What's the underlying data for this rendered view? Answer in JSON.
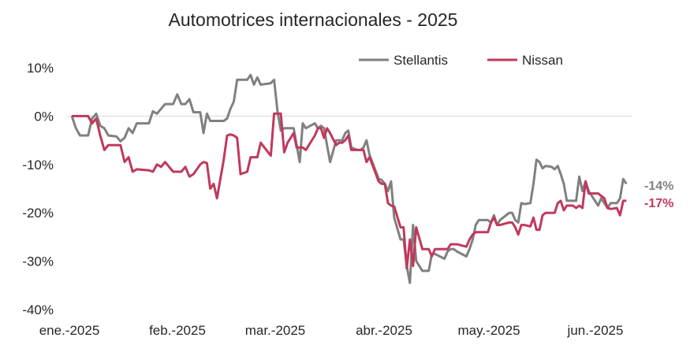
{
  "chart_data": {
    "type": "line",
    "title": "Automotrices internacionales - 2025",
    "xlabel": "",
    "ylabel": "",
    "xlim": [
      "2025-01-01",
      "2025-06-10"
    ],
    "ylim": [
      -40,
      10
    ],
    "x_ticks": [
      {
        "date": "2025-01-01",
        "label": "ene.-2025"
      },
      {
        "date": "2025-02-01",
        "label": "feb.-2025"
      },
      {
        "date": "2025-03-01",
        "label": "mar.-2025"
      },
      {
        "date": "2025-04-01",
        "label": "abr.-2025"
      },
      {
        "date": "2025-05-01",
        "label": "may.-2025"
      },
      {
        "date": "2025-06-01",
        "label": "jun.-2025"
      }
    ],
    "y_ticks": [
      {
        "value": 10,
        "label": "10%"
      },
      {
        "value": 0,
        "label": "0%"
      },
      {
        "value": -10,
        "label": "-10%"
      },
      {
        "value": -20,
        "label": "-20%"
      },
      {
        "value": -30,
        "label": "-30%"
      },
      {
        "value": -40,
        "label": "-40%"
      }
    ],
    "grid": false,
    "zero_line": true,
    "legend": "top-right",
    "series": [
      {
        "name": "Stellantis",
        "color": "#808080",
        "end_label": "-14%",
        "points": [
          [
            "2025-01-02",
            0
          ],
          [
            "2025-01-03",
            -2.5
          ],
          [
            "2025-01-04",
            -4
          ],
          [
            "2025-01-06",
            -4
          ],
          [
            "2025-01-07",
            -0.5
          ],
          [
            "2025-01-08",
            0.5
          ],
          [
            "2025-01-09",
            -2
          ],
          [
            "2025-01-10",
            -2.5
          ],
          [
            "2025-01-11",
            -4
          ],
          [
            "2025-01-13",
            -4.2
          ],
          [
            "2025-01-14",
            -5.2
          ],
          [
            "2025-01-15",
            -4.5
          ],
          [
            "2025-01-16",
            -2.5
          ],
          [
            "2025-01-17",
            -3.5
          ],
          [
            "2025-01-18",
            -1.5
          ],
          [
            "2025-01-21",
            -1.5
          ],
          [
            "2025-01-22",
            1
          ],
          [
            "2025-01-23",
            0.5
          ],
          [
            "2025-01-24",
            1.5
          ],
          [
            "2025-01-25",
            2.5
          ],
          [
            "2025-01-27",
            2.5
          ],
          [
            "2025-01-28",
            4.5
          ],
          [
            "2025-01-29",
            2.5
          ],
          [
            "2025-01-30",
            2.5
          ],
          [
            "2025-01-31",
            3.5
          ],
          [
            "2025-02-01",
            0.8
          ],
          [
            "2025-02-03",
            0.8
          ],
          [
            "2025-02-04",
            -3.5
          ],
          [
            "2025-02-05",
            0.5
          ],
          [
            "2025-02-06",
            -1
          ],
          [
            "2025-02-07",
            -1
          ],
          [
            "2025-02-10",
            -1
          ],
          [
            "2025-02-11",
            -0.5
          ],
          [
            "2025-02-12",
            1.5
          ],
          [
            "2025-02-13",
            3
          ],
          [
            "2025-02-14",
            7.5
          ],
          [
            "2025-02-17",
            7.5
          ],
          [
            "2025-02-18",
            8.5
          ],
          [
            "2025-02-19",
            6.5
          ],
          [
            "2025-02-20",
            8
          ],
          [
            "2025-02-21",
            6.5
          ],
          [
            "2025-02-24",
            6.8
          ],
          [
            "2025-02-25",
            7.5
          ],
          [
            "2025-02-26",
            1
          ],
          [
            "2025-02-27",
            -3
          ],
          [
            "2025-02-28",
            -2.5
          ],
          [
            "2025-03-03",
            -2.5
          ],
          [
            "2025-03-04",
            -6
          ],
          [
            "2025-03-05",
            -9.5
          ],
          [
            "2025-03-06",
            -1.5
          ],
          [
            "2025-03-07",
            -2.5
          ],
          [
            "2025-03-10",
            -1.5
          ],
          [
            "2025-03-11",
            -2.5
          ],
          [
            "2025-03-12",
            -2
          ],
          [
            "2025-03-13",
            -2.5
          ],
          [
            "2025-03-14",
            -6
          ],
          [
            "2025-03-15",
            -9.5
          ],
          [
            "2025-03-17",
            -5
          ],
          [
            "2025-03-18",
            -5
          ],
          [
            "2025-03-19",
            -5
          ],
          [
            "2025-03-20",
            -3.5
          ],
          [
            "2025-03-21",
            -3
          ],
          [
            "2025-03-22",
            -6.5
          ],
          [
            "2025-03-24",
            -7
          ],
          [
            "2025-03-25",
            -7
          ],
          [
            "2025-03-26",
            -6.5
          ],
          [
            "2025-03-27",
            -5
          ],
          [
            "2025-03-28",
            -8
          ],
          [
            "2025-03-31",
            -13
          ],
          [
            "2025-04-01",
            -13.2
          ],
          [
            "2025-04-02",
            -14
          ],
          [
            "2025-04-03",
            -15.5
          ],
          [
            "2025-04-04",
            -13.5
          ],
          [
            "2025-04-05",
            -21
          ],
          [
            "2025-04-07",
            -25.5
          ],
          [
            "2025-04-08",
            -25.5
          ],
          [
            "2025-04-09",
            -31
          ],
          [
            "2025-04-10",
            -34.5
          ],
          [
            "2025-04-11",
            -22.5
          ],
          [
            "2025-04-12",
            -30
          ],
          [
            "2025-04-14",
            -32
          ],
          [
            "2025-04-15",
            -32
          ],
          [
            "2025-04-16",
            -32
          ],
          [
            "2025-04-17",
            -28.5
          ],
          [
            "2025-04-18",
            -28.5
          ],
          [
            "2025-04-21",
            -29.5
          ],
          [
            "2025-04-22",
            -28
          ],
          [
            "2025-04-23",
            -27.5
          ],
          [
            "2025-04-24",
            -27.5
          ],
          [
            "2025-04-25",
            -28
          ],
          [
            "2025-04-28",
            -29
          ],
          [
            "2025-04-29",
            -27.5
          ],
          [
            "2025-04-30",
            -25.5
          ],
          [
            "2025-05-01",
            -22.5
          ],
          [
            "2025-05-02",
            -21.5
          ],
          [
            "2025-05-05",
            -21.5
          ],
          [
            "2025-05-06",
            -22
          ],
          [
            "2025-05-07",
            -20.5
          ],
          [
            "2025-05-08",
            -22.5
          ],
          [
            "2025-05-09",
            -21.5
          ],
          [
            "2025-05-12",
            -20
          ],
          [
            "2025-05-13",
            -20
          ],
          [
            "2025-05-14",
            -21.5
          ],
          [
            "2025-05-15",
            -22
          ],
          [
            "2025-05-16",
            -18
          ],
          [
            "2025-05-17",
            -18.2
          ],
          [
            "2025-05-19",
            -18
          ],
          [
            "2025-05-20",
            -14
          ],
          [
            "2025-05-21",
            -9
          ],
          [
            "2025-05-22",
            -9.5
          ],
          [
            "2025-05-23",
            -10.8
          ],
          [
            "2025-05-24",
            -10.3
          ],
          [
            "2025-05-26",
            -10.5
          ],
          [
            "2025-05-27",
            -11
          ],
          [
            "2025-05-28",
            -10.3
          ],
          [
            "2025-05-29",
            -12
          ],
          [
            "2025-05-30",
            -14
          ],
          [
            "2025-05-31",
            -17.5
          ],
          [
            "2025-06-02",
            -17.5
          ],
          [
            "2025-06-03",
            -17.5
          ],
          [
            "2025-06-04",
            -12.5
          ],
          [
            "2025-06-05",
            -15.5
          ],
          [
            "2025-06-06",
            -13.5
          ],
          [
            "2025-06-07",
            -15.5
          ],
          [
            "2025-06-09",
            -17.5
          ],
          [
            "2025-06-10",
            -18.5
          ],
          [
            "2025-06-11",
            -17
          ],
          [
            "2025-06-12",
            -18
          ],
          [
            "2025-06-13",
            -19
          ],
          [
            "2025-06-14",
            -18
          ],
          [
            "2025-06-16",
            -18
          ],
          [
            "2025-06-17",
            -17
          ],
          [
            "2025-06-18",
            -13
          ],
          [
            "2025-06-19",
            -14
          ]
        ]
      },
      {
        "name": "Nissan",
        "color": "#c0395c",
        "end_label": "-17%",
        "points": [
          [
            "2025-01-02",
            0
          ],
          [
            "2025-01-06",
            0
          ],
          [
            "2025-01-07",
            -1.5
          ],
          [
            "2025-01-08",
            -0.5
          ],
          [
            "2025-01-09",
            -4
          ],
          [
            "2025-01-10",
            -7
          ],
          [
            "2025-01-11",
            -6
          ],
          [
            "2025-01-13",
            -6
          ],
          [
            "2025-01-14",
            -6
          ],
          [
            "2025-01-15",
            -9.5
          ],
          [
            "2025-01-16",
            -8.5
          ],
          [
            "2025-01-17",
            -11.5
          ],
          [
            "2025-01-18",
            -11
          ],
          [
            "2025-01-21",
            -11.2
          ],
          [
            "2025-01-22",
            -11.5
          ],
          [
            "2025-01-23",
            -10
          ],
          [
            "2025-01-24",
            -10.5
          ],
          [
            "2025-01-25",
            -9.5
          ],
          [
            "2025-01-27",
            -11.5
          ],
          [
            "2025-01-28",
            -11.5
          ],
          [
            "2025-01-29",
            -11.5
          ],
          [
            "2025-01-30",
            -10.5
          ],
          [
            "2025-01-31",
            -12.5
          ],
          [
            "2025-02-01",
            -12
          ],
          [
            "2025-02-03",
            -10
          ],
          [
            "2025-02-04",
            -9.5
          ],
          [
            "2025-02-05",
            -9.7
          ],
          [
            "2025-02-06",
            -15
          ],
          [
            "2025-02-07",
            -14
          ],
          [
            "2025-02-08",
            -17
          ],
          [
            "2025-02-10",
            -9
          ],
          [
            "2025-02-11",
            -4
          ],
          [
            "2025-02-12",
            -3.8
          ],
          [
            "2025-02-13",
            -4
          ],
          [
            "2025-02-14",
            -4.5
          ],
          [
            "2025-02-15",
            -12
          ],
          [
            "2025-02-17",
            -11.5
          ],
          [
            "2025-02-18",
            -8.5
          ],
          [
            "2025-02-19",
            -8.5
          ],
          [
            "2025-02-20",
            -8.5
          ],
          [
            "2025-02-21",
            -5.5
          ],
          [
            "2025-02-24",
            -8.2
          ],
          [
            "2025-02-25",
            0.5
          ],
          [
            "2025-02-26",
            0.5
          ],
          [
            "2025-02-27",
            0.5
          ],
          [
            "2025-02-28",
            -7.5
          ],
          [
            "2025-03-01",
            -5.5
          ],
          [
            "2025-03-03",
            -3.5
          ],
          [
            "2025-03-04",
            -6.5
          ],
          [
            "2025-03-05",
            -6.5
          ],
          [
            "2025-03-06",
            -6.5
          ],
          [
            "2025-03-07",
            -7
          ],
          [
            "2025-03-10",
            -4
          ],
          [
            "2025-03-11",
            -2.5
          ],
          [
            "2025-03-12",
            -2.5
          ],
          [
            "2025-03-13",
            -4.5
          ],
          [
            "2025-03-14",
            -2.5
          ],
          [
            "2025-03-15",
            -3.5
          ],
          [
            "2025-03-17",
            -6
          ],
          [
            "2025-03-18",
            -5.5
          ],
          [
            "2025-03-19",
            -5.5
          ],
          [
            "2025-03-20",
            -5
          ],
          [
            "2025-03-21",
            -4
          ],
          [
            "2025-03-22",
            -7
          ],
          [
            "2025-03-24",
            -7
          ],
          [
            "2025-03-25",
            -7
          ],
          [
            "2025-03-26",
            -7
          ],
          [
            "2025-03-27",
            -9.5
          ],
          [
            "2025-03-28",
            -8.5
          ],
          [
            "2025-03-31",
            -13.5
          ],
          [
            "2025-04-01",
            -14
          ],
          [
            "2025-04-02",
            -14
          ],
          [
            "2025-04-03",
            -18
          ],
          [
            "2025-04-04",
            -18.5
          ],
          [
            "2025-04-05",
            -18.7
          ],
          [
            "2025-04-07",
            -23
          ],
          [
            "2025-04-08",
            -23
          ],
          [
            "2025-04-09",
            -31.5
          ],
          [
            "2025-04-10",
            -25.5
          ],
          [
            "2025-04-11",
            -31
          ],
          [
            "2025-04-12",
            -23
          ],
          [
            "2025-04-14",
            -27.5
          ],
          [
            "2025-04-15",
            -27.5
          ],
          [
            "2025-04-16",
            -27.5
          ],
          [
            "2025-04-17",
            -29
          ],
          [
            "2025-04-18",
            -27.5
          ],
          [
            "2025-04-21",
            -27.5
          ],
          [
            "2025-04-22",
            -27.5
          ],
          [
            "2025-04-23",
            -26.5
          ],
          [
            "2025-04-24",
            -26.5
          ],
          [
            "2025-04-25",
            -26.5
          ],
          [
            "2025-04-28",
            -27
          ],
          [
            "2025-04-29",
            -25.5
          ],
          [
            "2025-04-30",
            -24.5
          ],
          [
            "2025-05-01",
            -24
          ],
          [
            "2025-05-02",
            -24
          ],
          [
            "2025-05-05",
            -24
          ],
          [
            "2025-05-06",
            -22
          ],
          [
            "2025-05-07",
            -21
          ],
          [
            "2025-05-08",
            -22.5
          ],
          [
            "2025-05-09",
            -22.5
          ],
          [
            "2025-05-12",
            -22
          ],
          [
            "2025-05-13",
            -22
          ],
          [
            "2025-05-14",
            -23
          ],
          [
            "2025-05-15",
            -24.5
          ],
          [
            "2025-05-16",
            -22.5
          ],
          [
            "2025-05-17",
            -22.5
          ],
          [
            "2025-05-19",
            -22.8
          ],
          [
            "2025-05-20",
            -21
          ],
          [
            "2025-05-21",
            -23.5
          ],
          [
            "2025-05-22",
            -23.5
          ],
          [
            "2025-05-23",
            -20.5
          ],
          [
            "2025-05-24",
            -20
          ],
          [
            "2025-05-26",
            -20
          ],
          [
            "2025-05-27",
            -20
          ],
          [
            "2025-05-28",
            -18
          ],
          [
            "2025-05-29",
            -17.5
          ],
          [
            "2025-05-30",
            -19.5
          ],
          [
            "2025-05-31",
            -18.5
          ],
          [
            "2025-06-02",
            -18.5
          ],
          [
            "2025-06-03",
            -19
          ],
          [
            "2025-06-04",
            -18.5
          ],
          [
            "2025-06-05",
            -19
          ],
          [
            "2025-06-06",
            -13.5
          ],
          [
            "2025-06-07",
            -16
          ],
          [
            "2025-06-09",
            -16
          ],
          [
            "2025-06-10",
            -16
          ],
          [
            "2025-06-11",
            -16.5
          ],
          [
            "2025-06-12",
            -17
          ],
          [
            "2025-06-13",
            -19
          ],
          [
            "2025-06-14",
            -19.2
          ],
          [
            "2025-06-16",
            -19
          ],
          [
            "2025-06-17",
            -20.5
          ],
          [
            "2025-06-18",
            -17.5
          ],
          [
            "2025-06-19",
            -17.5
          ]
        ]
      }
    ]
  }
}
